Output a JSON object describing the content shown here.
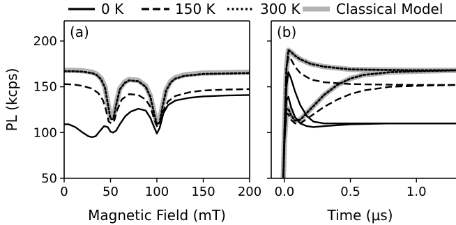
{
  "legend": [
    {
      "label": "0 K",
      "style": "solid",
      "color": "#000000"
    },
    {
      "label": "150 K",
      "style": "dashed",
      "color": "#000000"
    },
    {
      "label": "300 K",
      "style": "dotted",
      "color": "#000000"
    },
    {
      "label": "Classical Model",
      "style": "thick",
      "color": "#b3b3b3"
    }
  ],
  "chart_data": [
    {
      "type": "line",
      "panel_label": "(a)",
      "xlabel": "Magnetic Field (mT)",
      "ylabel": "PL (kcps)",
      "xlim": [
        0,
        200
      ],
      "ylim": [
        50,
        222
      ],
      "xticks": [
        0,
        50,
        100,
        150,
        200
      ],
      "xtick_labels": [
        "0",
        "50",
        "100",
        "150",
        "200"
      ],
      "yticks": [
        50,
        100,
        150,
        200
      ],
      "ytick_labels": [
        "50",
        "100",
        "150",
        "200"
      ],
      "grid": false,
      "series": [
        {
          "name": "Classical Model",
          "style": "thick",
          "color": "#b3b3b3",
          "x": [
            0,
            10,
            20,
            30,
            35,
            40,
            44,
            47,
            50,
            53,
            56,
            60,
            65,
            70,
            80,
            88,
            93,
            97,
            100,
            103,
            106,
            110,
            115,
            120,
            130,
            150,
            175,
            200
          ],
          "y": [
            168,
            168,
            167.5,
            166,
            164,
            159,
            150,
            133,
            116,
            116,
            131,
            148,
            155,
            158,
            157,
            151,
            140,
            122,
            110,
            112,
            129,
            147,
            156,
            160,
            163,
            165,
            165.5,
            166
          ]
        },
        {
          "name": "300 K",
          "style": "dotted",
          "color": "#000000",
          "x": [
            0,
            10,
            20,
            30,
            35,
            40,
            44,
            47,
            50,
            53,
            56,
            60,
            65,
            70,
            80,
            88,
            93,
            97,
            100,
            103,
            106,
            110,
            115,
            120,
            130,
            150,
            175,
            200
          ],
          "y": [
            167,
            167,
            166.5,
            165,
            163,
            158,
            149,
            132,
            115,
            115,
            130,
            147,
            154,
            157,
            156,
            150,
            139,
            121,
            109,
            111,
            128,
            146,
            155,
            159,
            162,
            164,
            164.5,
            165
          ]
        },
        {
          "name": "150 K",
          "style": "dashed",
          "color": "#000000",
          "x": [
            0,
            10,
            20,
            30,
            37,
            42,
            45,
            48,
            51,
            54,
            57,
            62,
            70,
            80,
            88,
            93,
            97,
            100,
            103,
            107,
            112,
            120,
            135,
            150,
            175,
            200
          ],
          "y": [
            153,
            152.5,
            151,
            148,
            143,
            135,
            125,
            112,
            110,
            113,
            124,
            136,
            142,
            141,
            136,
            128,
            115,
            107,
            109,
            124,
            134,
            140,
            144,
            146,
            147,
            147.5
          ]
        },
        {
          "name": "0 K",
          "style": "solid",
          "color": "#000000",
          "x": [
            0,
            5,
            12,
            20,
            26,
            30,
            34,
            38,
            43,
            47,
            50,
            53,
            56,
            60,
            66,
            72,
            80,
            88,
            93,
            97,
            100,
            103,
            107,
            112,
            120,
            135,
            150,
            175,
            200
          ],
          "y": [
            109,
            109,
            106,
            100,
            96,
            95,
            96,
            101,
            107,
            106,
            101,
            100,
            102,
            109,
            118,
            123,
            126,
            124,
            116,
            106,
            99,
            105,
            121,
            130,
            135,
            138,
            139.5,
            140.5,
            141
          ]
        }
      ]
    },
    {
      "type": "line",
      "panel_label": "(b)",
      "xlabel": "Time (μs)",
      "ylabel": "",
      "xlim": [
        -0.1,
        1.3
      ],
      "ylim": [
        50,
        222
      ],
      "xticks": [
        0.0,
        0.5,
        1.0
      ],
      "xtick_labels": [
        "0.0",
        "0.5",
        "1.0"
      ],
      "yticks": [
        50,
        100,
        150,
        200
      ],
      "grid": false,
      "series": [
        {
          "name": "Classical Model",
          "style": "thick",
          "color": "#b3b3b3",
          "x": [
            -0.1,
            -0.01,
            0.0,
            0.015,
            0.03,
            0.05,
            0.08,
            0.12,
            0.2,
            0.3,
            0.5,
            0.7,
            1.0,
            1.3
          ],
          "y": [
            40,
            40,
            100,
            170,
            190,
            188,
            184,
            180,
            175,
            172,
            169,
            168.5,
            168,
            168
          ]
        },
        {
          "name": "Classical Model",
          "style": "thick",
          "color": "#b3b3b3",
          "x": [
            -0.1,
            -0.01,
            0.0,
            0.015,
            0.03,
            0.05,
            0.08,
            0.12,
            0.2,
            0.3,
            0.4,
            0.5,
            0.6,
            0.8,
            1.0,
            1.3
          ],
          "y": [
            40,
            40,
            90,
            125,
            126,
            119,
            113,
            114,
            126,
            141,
            152,
            159,
            163,
            166,
            167,
            168
          ]
        },
        {
          "name": "300 K",
          "style": "dotted",
          "color": "#000000",
          "x": [
            -0.1,
            -0.01,
            0.0,
            0.015,
            0.03,
            0.05,
            0.08,
            0.12,
            0.2,
            0.3,
            0.5,
            0.7,
            1.0,
            1.3
          ],
          "y": [
            40,
            40,
            100,
            170,
            190,
            188,
            184,
            180,
            175,
            172,
            169,
            168.5,
            168,
            168
          ]
        },
        {
          "name": "300 K",
          "style": "dotted",
          "color": "#000000",
          "x": [
            -0.1,
            -0.01,
            0.0,
            0.015,
            0.03,
            0.05,
            0.08,
            0.12,
            0.2,
            0.3,
            0.4,
            0.5,
            0.6,
            0.8,
            1.0,
            1.3
          ],
          "y": [
            40,
            40,
            90,
            125,
            126,
            119,
            113,
            114,
            126,
            141,
            152,
            159,
            163,
            166,
            167,
            168
          ]
        },
        {
          "name": "150 K",
          "style": "dashed",
          "color": "#000000",
          "x": [
            -0.1,
            -0.01,
            0.0,
            0.015,
            0.03,
            0.05,
            0.08,
            0.12,
            0.2,
            0.3,
            0.5,
            0.7,
            1.0,
            1.3
          ],
          "y": [
            40,
            40,
            100,
            170,
            183,
            180,
            172,
            165,
            158,
            155,
            153,
            152.5,
            152,
            152
          ]
        },
        {
          "name": "150 K",
          "style": "dashed",
          "color": "#000000",
          "x": [
            -0.1,
            -0.01,
            0.0,
            0.015,
            0.03,
            0.05,
            0.08,
            0.12,
            0.2,
            0.3,
            0.4,
            0.5,
            0.6,
            0.8,
            1.0,
            1.3
          ],
          "y": [
            40,
            40,
            90,
            121,
            120,
            114,
            110,
            110,
            118,
            128,
            136,
            142,
            146,
            150,
            151,
            152
          ]
        },
        {
          "name": "0 K",
          "style": "solid",
          "color": "#000000",
          "x": [
            -0.1,
            -0.01,
            0.0,
            0.015,
            0.03,
            0.05,
            0.08,
            0.12,
            0.17,
            0.22,
            0.3,
            0.5,
            0.8,
            1.3
          ],
          "y": [
            40,
            40,
            100,
            150,
            166,
            159,
            145,
            130,
            118,
            112,
            110,
            110,
            110,
            110
          ]
        },
        {
          "name": "0 K",
          "style": "solid",
          "color": "#000000",
          "x": [
            -0.1,
            -0.01,
            0.0,
            0.015,
            0.03,
            0.05,
            0.08,
            0.12,
            0.17,
            0.22,
            0.3,
            0.5,
            0.8,
            1.3
          ],
          "y": [
            40,
            40,
            90,
            135,
            139,
            128,
            117,
            110,
            107,
            106,
            107,
            109,
            110,
            110
          ]
        }
      ]
    }
  ]
}
